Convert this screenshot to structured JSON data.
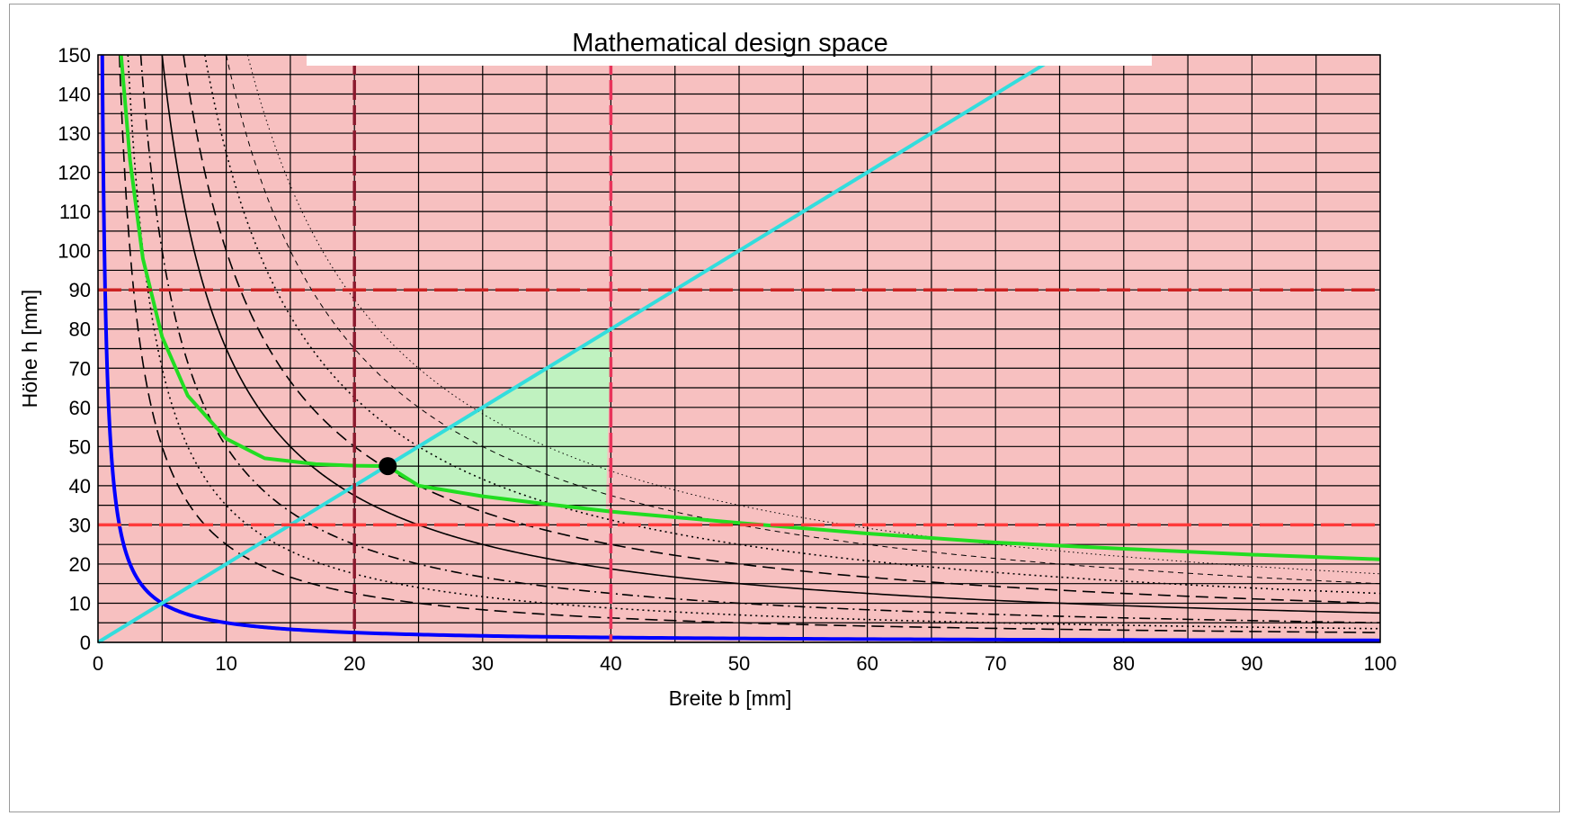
{
  "chart_data": {
    "type": "line",
    "title": "Mathematical design space",
    "xlabel": "Breite b [mm]",
    "ylabel": "Höhe h [mm]",
    "xlim": [
      0,
      100
    ],
    "ylim": [
      0,
      150
    ],
    "x_ticks": [
      0,
      10,
      20,
      30,
      40,
      50,
      60,
      70,
      80,
      90,
      100
    ],
    "y_ticks": [
      0,
      10,
      20,
      30,
      40,
      50,
      60,
      70,
      80,
      90,
      100,
      110,
      120,
      130,
      140,
      150
    ],
    "x_minor_step": 5,
    "y_minor_step": 5,
    "grid": true,
    "background_color": "#f7c0c0",
    "feasible_color": "#c0f2c0",
    "series": [
      {
        "kind": "hyperbola",
        "k": 50,
        "color": "#0000ff",
        "style": "solid",
        "width": 4
      },
      {
        "kind": "hyperbola",
        "k": 250,
        "color": "#000000",
        "style": "dashed",
        "width": 1.6
      },
      {
        "kind": "hyperbola",
        "k": 350,
        "color": "#000000",
        "style": "dotted",
        "width": 1.6
      },
      {
        "kind": "hyperbola",
        "k": 500,
        "color": "#000000",
        "style": "dashdot",
        "width": 1.6
      },
      {
        "kind": "hyperbola",
        "k": 750,
        "color": "#000000",
        "style": "solid",
        "width": 1.6
      },
      {
        "kind": "hyperbola",
        "k": 1000,
        "color": "#000000",
        "style": "dashed",
        "width": 1.6
      },
      {
        "kind": "hyperbola",
        "k": 1250,
        "color": "#000000",
        "style": "dotted",
        "width": 1.6
      },
      {
        "kind": "hyperbola",
        "k": 1500,
        "color": "#000000",
        "style": "dashed-thin",
        "width": 1
      },
      {
        "kind": "hyperbola",
        "k": 1750,
        "color": "#000000",
        "style": "dotted-thin",
        "width": 1
      },
      {
        "kind": "curve",
        "color": "#22dd22",
        "style": "solid",
        "width": 4,
        "x": [
          1.8,
          2.5,
          3.5,
          5,
          7,
          10,
          13,
          17,
          20,
          22.6,
          25,
          30,
          35,
          40,
          50,
          60,
          70,
          80,
          90,
          100
        ],
        "y": [
          150,
          123,
          98,
          78,
          63,
          52,
          47,
          45.5,
          45.1,
          45,
          40,
          37.3,
          35.3,
          33.4,
          30.5,
          27.8,
          25.5,
          23.9,
          22.4,
          21.2
        ]
      },
      {
        "kind": "line",
        "slope": 2,
        "color": "#33dddd",
        "style": "solid",
        "width": 4
      }
    ],
    "vertical_limits": [
      {
        "x": 20,
        "color": "#8b1a2e"
      },
      {
        "x": 40,
        "color": "#e8335a"
      }
    ],
    "horizontal_limits": [
      {
        "y": 90,
        "color": "#cc2222"
      },
      {
        "y": 30,
        "color": "#ff3a3a"
      }
    ],
    "optimum_point": {
      "x": 22.6,
      "y": 45
    }
  }
}
